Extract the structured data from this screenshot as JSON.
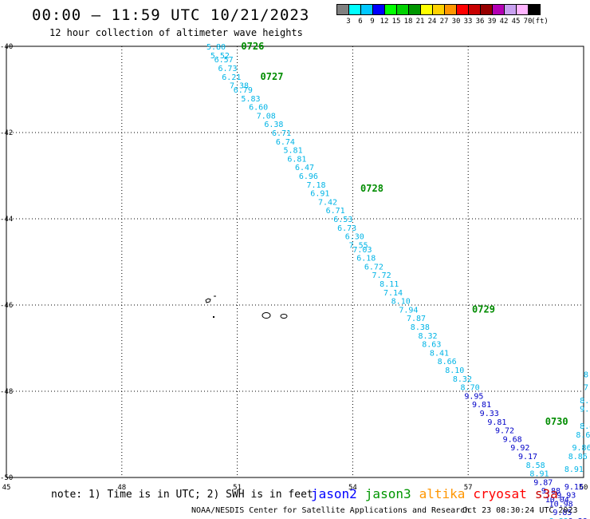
{
  "header": {
    "title": "00:00 – 11:59 UTC 10/21/2023",
    "subtitle": "12 hour collection of altimeter wave heights"
  },
  "legend": {
    "colors": [
      "#808080",
      "#00ffff",
      "#00c8ff",
      "#0000ff",
      "#00ff00",
      "#00d200",
      "#009600",
      "#ffff00",
      "#ffd200",
      "#ff9600",
      "#ff0000",
      "#c80000",
      "#960000",
      "#b400b4",
      "#c8a0f0",
      "#ffb4ff",
      "#000000"
    ],
    "labels": [
      "3",
      "6",
      "9",
      "12",
      "15",
      "18",
      "21",
      "24",
      "27",
      "30",
      "33",
      "36",
      "39",
      "42",
      "45",
      "70",
      "(ft)"
    ]
  },
  "note": "note: 1) Time is in UTC; 2) SWH is in feet",
  "satellites": [
    {
      "name": "jason2",
      "color": "#0000ff"
    },
    {
      "name": "jason3",
      "color": "#009600"
    },
    {
      "name": "altika",
      "color": "#ff9600"
    },
    {
      "name": "cryosat",
      "color": "#ff0000"
    },
    {
      "name": "s3a",
      "color": "#c80000"
    }
  ],
  "footer": {
    "credit": "NOAA/NESDIS Center for Satellite Applications and Research",
    "timestamp": "Oct 23 08:30:24 UTC 2023"
  },
  "chart_data": {
    "type": "scatter",
    "x_ticks": [
      "45",
      "48",
      "51",
      "54",
      "57",
      "60"
    ],
    "y_ticks": [
      "-40",
      "-42",
      "-44",
      "-46",
      "-48",
      "-50"
    ],
    "xlim": [
      45,
      60
    ],
    "ylim": [
      -50,
      -40
    ],
    "grid": true,
    "times": [
      {
        "label": "0726",
        "x": 51.1,
        "y": -40.0
      },
      {
        "label": "0727",
        "x": 51.6,
        "y": -40.7
      },
      {
        "label": "0728",
        "x": 54.2,
        "y": -43.3
      },
      {
        "label": "0729",
        "x": 57.1,
        "y": -46.1
      },
      {
        "label": "0730",
        "x": 59.0,
        "y": -48.7
      }
    ],
    "tracks": [
      {
        "color": "#00b4e6",
        "points": [
          {
            "x": 50.2,
            "y": -40.0,
            "v": "5.80"
          },
          {
            "x": 50.3,
            "y": -40.2,
            "v": "5.52"
          },
          {
            "x": 50.4,
            "y": -40.3,
            "v": "6.57"
          },
          {
            "x": 50.5,
            "y": -40.5,
            "v": "6.73"
          },
          {
            "x": 50.6,
            "y": -40.7,
            "v": "6.21"
          },
          {
            "x": 50.8,
            "y": -40.9,
            "v": "7.38"
          },
          {
            "x": 50.9,
            "y": -41.0,
            "v": "6.79"
          },
          {
            "x": 51.1,
            "y": -41.2,
            "v": "5.83"
          },
          {
            "x": 51.3,
            "y": -41.4,
            "v": "6.60"
          },
          {
            "x": 51.5,
            "y": -41.6,
            "v": "7.08"
          },
          {
            "x": 51.7,
            "y": -41.8,
            "v": "6.38"
          },
          {
            "x": 51.9,
            "y": -42.0,
            "v": "6.71"
          },
          {
            "x": 52.0,
            "y": -42.2,
            "v": "6.74"
          },
          {
            "x": 52.2,
            "y": -42.4,
            "v": "5.81"
          },
          {
            "x": 52.3,
            "y": -42.6,
            "v": "6.81"
          },
          {
            "x": 52.5,
            "y": -42.8,
            "v": "6.47"
          },
          {
            "x": 52.6,
            "y": -43.0,
            "v": "6.96"
          },
          {
            "x": 52.8,
            "y": -43.2,
            "v": "7.18"
          },
          {
            "x": 52.9,
            "y": -43.4,
            "v": "6.91"
          },
          {
            "x": 53.1,
            "y": -43.6,
            "v": "7.42"
          },
          {
            "x": 53.3,
            "y": -43.8,
            "v": "6.71"
          },
          {
            "x": 53.5,
            "y": -44.0,
            "v": "6.53"
          },
          {
            "x": 53.6,
            "y": -44.2,
            "v": "6.73"
          },
          {
            "x": 53.8,
            "y": -44.4,
            "v": "6.30"
          },
          {
            "x": 53.9,
            "y": -44.6,
            "v": "7.55"
          },
          {
            "x": 54.0,
            "y": -44.7,
            "v": "7.03"
          },
          {
            "x": 54.1,
            "y": -44.9,
            "v": "6.18"
          },
          {
            "x": 54.3,
            "y": -45.1,
            "v": "6.72"
          },
          {
            "x": 54.5,
            "y": -45.3,
            "v": "7.72"
          },
          {
            "x": 54.7,
            "y": -45.5,
            "v": "8.11"
          },
          {
            "x": 54.8,
            "y": -45.7,
            "v": "7.14"
          },
          {
            "x": 55.0,
            "y": -45.9,
            "v": "8.10"
          },
          {
            "x": 55.2,
            "y": -46.1,
            "v": "7.94"
          },
          {
            "x": 55.4,
            "y": -46.3,
            "v": "7.87"
          },
          {
            "x": 55.5,
            "y": -46.5,
            "v": "8.38"
          },
          {
            "x": 55.7,
            "y": -46.7,
            "v": "8.32"
          },
          {
            "x": 55.8,
            "y": -46.9,
            "v": "8.63"
          },
          {
            "x": 56.0,
            "y": -47.1,
            "v": "8.41"
          },
          {
            "x": 56.2,
            "y": -47.3,
            "v": "8.66"
          },
          {
            "x": 56.4,
            "y": -47.5,
            "v": "8.10"
          },
          {
            "x": 56.6,
            "y": -47.7,
            "v": "8.32"
          },
          {
            "x": 56.8,
            "y": -47.9,
            "v": "8.70"
          }
        ]
      },
      {
        "color": "#0000c8",
        "points": [
          {
            "x": 56.9,
            "y": -48.1,
            "v": "9.95"
          },
          {
            "x": 57.1,
            "y": -48.3,
            "v": "9.81"
          },
          {
            "x": 57.3,
            "y": -48.5,
            "v": "9.33"
          },
          {
            "x": 57.5,
            "y": -48.7,
            "v": "9.81"
          },
          {
            "x": 57.7,
            "y": -48.9,
            "v": "9.72"
          },
          {
            "x": 57.9,
            "y": -49.1,
            "v": "9.68"
          },
          {
            "x": 58.1,
            "y": -49.3,
            "v": "9.92"
          },
          {
            "x": 58.3,
            "y": -49.5,
            "v": "9.17"
          }
        ]
      },
      {
        "color": "#00b4e6",
        "points": [
          {
            "x": 58.5,
            "y": -49.7,
            "v": "8.58"
          },
          {
            "x": 58.6,
            "y": -49.9,
            "v": "8.91"
          }
        ]
      },
      {
        "color": "#0000c8",
        "points": [
          {
            "x": 58.7,
            "y": -50.1,
            "v": "9.87"
          },
          {
            "x": 58.9,
            "y": -50.3,
            "v": "9.88"
          },
          {
            "x": 59.0,
            "y": -50.5,
            "v": "10.04"
          },
          {
            "x": 59.1,
            "y": -50.6,
            "v": "10.98"
          },
          {
            "x": 59.2,
            "y": -50.8,
            "v": "9.85"
          },
          {
            "x": 59.3,
            "y": -50.4,
            "v": "9.93"
          },
          {
            "x": 59.5,
            "y": -50.2,
            "v": "9.15"
          }
        ]
      },
      {
        "color": "#00b4e6",
        "points": [
          {
            "x": 59.1,
            "y": -51.0,
            "v": "8.89"
          },
          {
            "x": 59.5,
            "y": -49.8,
            "v": "8.91"
          },
          {
            "x": 59.6,
            "y": -49.5,
            "v": "8.86"
          },
          {
            "x": 59.7,
            "y": -49.3,
            "v": "9.86"
          },
          {
            "x": 59.8,
            "y": -49.0,
            "v": "8.64"
          },
          {
            "x": 59.9,
            "y": -48.8,
            "v": "8.41"
          },
          {
            "x": 59.9,
            "y": -48.4,
            "v": "9.13"
          },
          {
            "x": 59.9,
            "y": -48.2,
            "v": "8.6"
          },
          {
            "x": 60.0,
            "y": -47.9,
            "v": "7."
          },
          {
            "x": 60.0,
            "y": -47.6,
            "v": "8"
          }
        ]
      },
      {
        "color": "#0000c8",
        "points": [
          {
            "x": 59.6,
            "y": -51.0,
            "v": "9.38"
          }
        ]
      }
    ]
  }
}
